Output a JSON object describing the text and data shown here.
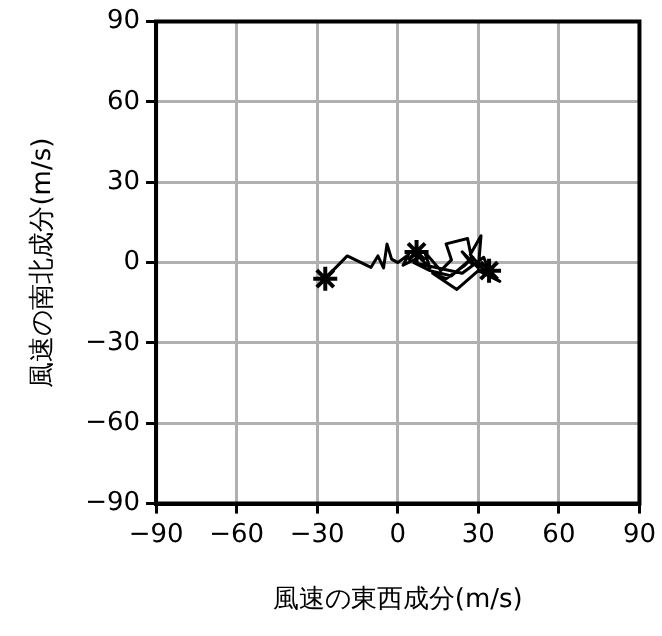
{
  "chart_data": {
    "type": "line",
    "xlabel": "風速の東西成分(m/s)",
    "ylabel": "風速の南北成分(m/s)",
    "series": [
      {
        "color": "#000000",
        "marker": "none",
        "x": [
          -29.5,
          -18.8,
          -10,
          -7.4,
          -5.3,
          -4,
          -2.3,
          0,
          4,
          2,
          8,
          12,
          10,
          16,
          20,
          18,
          26,
          28,
          24,
          30,
          31,
          27,
          33,
          38,
          30,
          22,
          13,
          18,
          25,
          28,
          20,
          12,
          6,
          15,
          24,
          32,
          34
        ],
        "values": [
          -8.4,
          2.5,
          -1.8,
          2.5,
          -2,
          6.9,
          1.3,
          0,
          3,
          -1,
          2,
          -2,
          4,
          -3,
          1,
          7,
          9,
          -1,
          4,
          -2,
          10,
          3,
          -4,
          -7,
          -3,
          -10,
          -4,
          -6,
          -1,
          2,
          -5,
          -3,
          0,
          -2,
          -4,
          2,
          -3
        ]
      },
      {
        "type": "scatter",
        "color": "#000000",
        "marker": "cross",
        "x": [
          -27,
          7,
          34
        ],
        "values": [
          -6,
          4,
          -3
        ]
      }
    ],
    "xlim": [
      -90,
      90
    ],
    "ylim": [
      -90,
      90
    ],
    "xticks": [
      -90,
      -60,
      -30,
      0,
      30,
      60,
      90
    ],
    "yticks": [
      -90,
      -60,
      -30,
      0,
      30,
      60,
      90
    ],
    "grid": true,
    "legend": false
  }
}
